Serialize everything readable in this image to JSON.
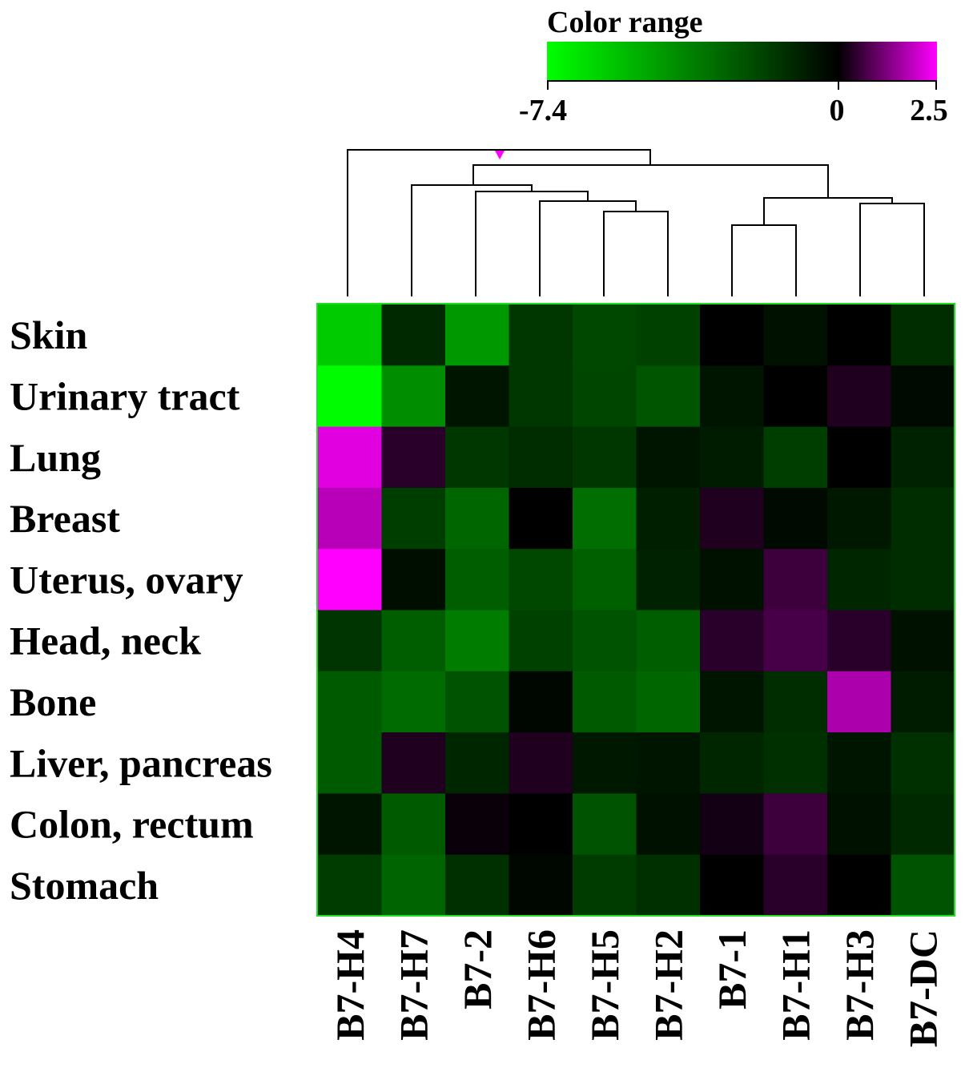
{
  "chart_data": {
    "type": "heatmap",
    "legend": {
      "title": "Color range",
      "min": -7.4,
      "mid": 0,
      "max": 2.5,
      "tick_labels": [
        "-7.4",
        "0",
        "2.5"
      ],
      "low_color": "#00ff00",
      "mid_color": "#000000",
      "high_color": "#ff00ff"
    },
    "rows": [
      "Skin",
      "Urinary tract",
      "Lung",
      "Breast",
      "Uterus, ovary",
      "Head, neck",
      "Bone",
      "Liver, pancreas",
      "Colon, rectum",
      "Stomach"
    ],
    "columns": [
      "B7-H4",
      "B7-H7",
      "B7-2",
      "B7-H6",
      "B7-H5",
      "B7-H2",
      "B7-1",
      "B7-H1",
      "B7-H3",
      "B7-DC"
    ],
    "values": [
      [
        -5.9,
        -1.2,
        -4.4,
        -1.6,
        -2.1,
        -1.9,
        0,
        -0.5,
        0,
        -1.3
      ],
      [
        -7.3,
        -4.1,
        -0.6,
        -1.6,
        -2.0,
        -2.5,
        -0.6,
        0,
        0.3,
        -0.3
      ],
      [
        2.2,
        0.4,
        -1.6,
        -1.3,
        -1.6,
        -0.6,
        -0.8,
        -1.8,
        0,
        -1.0
      ],
      [
        1.8,
        -1.8,
        -3.0,
        0,
        -3.2,
        -0.9,
        0.3,
        -0.3,
        -0.7,
        -1.3
      ],
      [
        2.5,
        -0.4,
        -2.7,
        -2.1,
        -2.8,
        -1.0,
        -0.5,
        0.6,
        -1.1,
        -1.3
      ],
      [
        -1.5,
        -2.7,
        -3.6,
        -1.9,
        -2.4,
        -2.7,
        0.4,
        0.7,
        0.4,
        -0.5
      ],
      [
        -2.6,
        -3.1,
        -2.4,
        -0.2,
        -2.6,
        -3.0,
        -0.6,
        -1.3,
        1.7,
        -0.8
      ],
      [
        -2.6,
        0.3,
        -1.1,
        0.3,
        -0.7,
        -0.6,
        -1.1,
        -1.4,
        -0.6,
        -1.4
      ],
      [
        -0.6,
        -2.6,
        0.1,
        0,
        -2.4,
        -0.5,
        0.2,
        0.6,
        -0.5,
        -1.2
      ],
      [
        -1.7,
        -2.9,
        -1.4,
        -0.2,
        -1.7,
        -1.4,
        0,
        0.4,
        0,
        -2.4
      ]
    ]
  }
}
